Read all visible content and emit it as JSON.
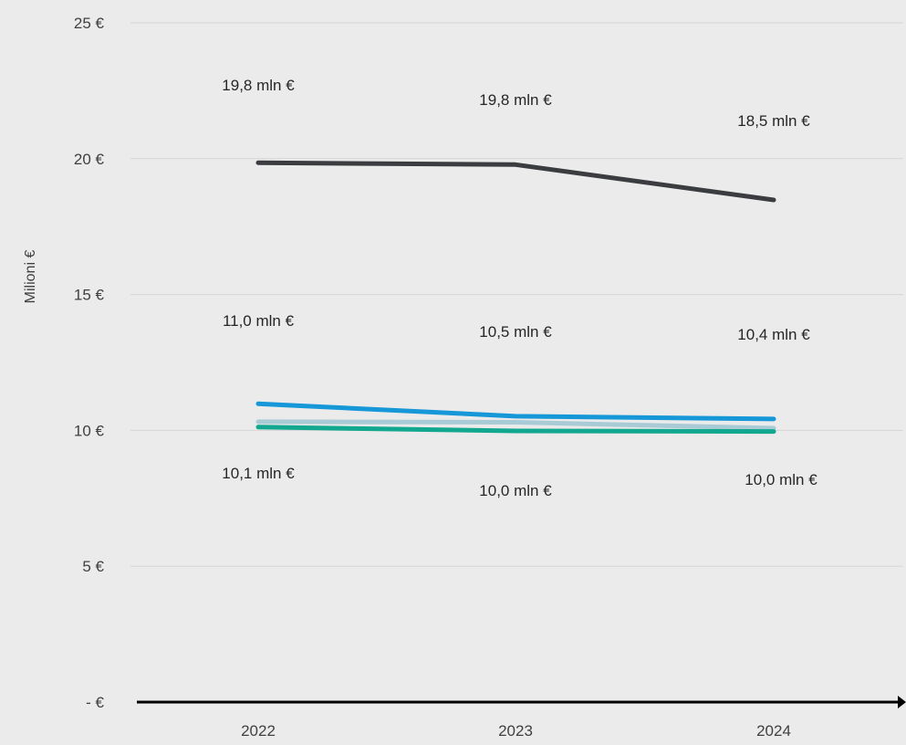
{
  "chart_data": {
    "type": "line",
    "title": "",
    "xlabel": "",
    "ylabel": "Milioni €",
    "ylim": [
      0,
      25
    ],
    "grid": true,
    "legend": "none",
    "categories": [
      "2022",
      "2023",
      "2024"
    ],
    "y_ticks": [
      {
        "value": 0,
        "label": "-  €"
      },
      {
        "value": 5,
        "label": "5 €"
      },
      {
        "value": 10,
        "label": "10 €"
      },
      {
        "value": 15,
        "label": "15 €"
      },
      {
        "value": 20,
        "label": "20 €"
      },
      {
        "value": 25,
        "label": "25 €"
      }
    ],
    "series": [
      {
        "color": "#3a3c40",
        "values": [
          19.85,
          19.78,
          18.48
        ]
      },
      {
        "color": "#1697d8",
        "values": [
          10.98,
          10.52,
          10.42
        ]
      },
      {
        "color": "#a9cbd6",
        "values": [
          10.32,
          10.3,
          10.08
        ]
      },
      {
        "color": "#12a78f",
        "values": [
          10.12,
          9.98,
          9.96
        ]
      }
    ],
    "data_labels": [
      {
        "category": "2022",
        "text": "19,8 mln €"
      },
      {
        "category": "2023",
        "text": "19,8 mln €"
      },
      {
        "category": "2024",
        "text": "18,5 mln €"
      },
      {
        "category": "2022",
        "text": "11,0 mln €"
      },
      {
        "category": "2023",
        "text": "10,5 mln €"
      },
      {
        "category": "2024",
        "text": "10,4 mln €"
      },
      {
        "category": "2022",
        "text": "10,1 mln €"
      },
      {
        "category": "2023",
        "text": "10,0 mln €"
      },
      {
        "category": "2024",
        "text": "10,0 mln €"
      }
    ]
  }
}
